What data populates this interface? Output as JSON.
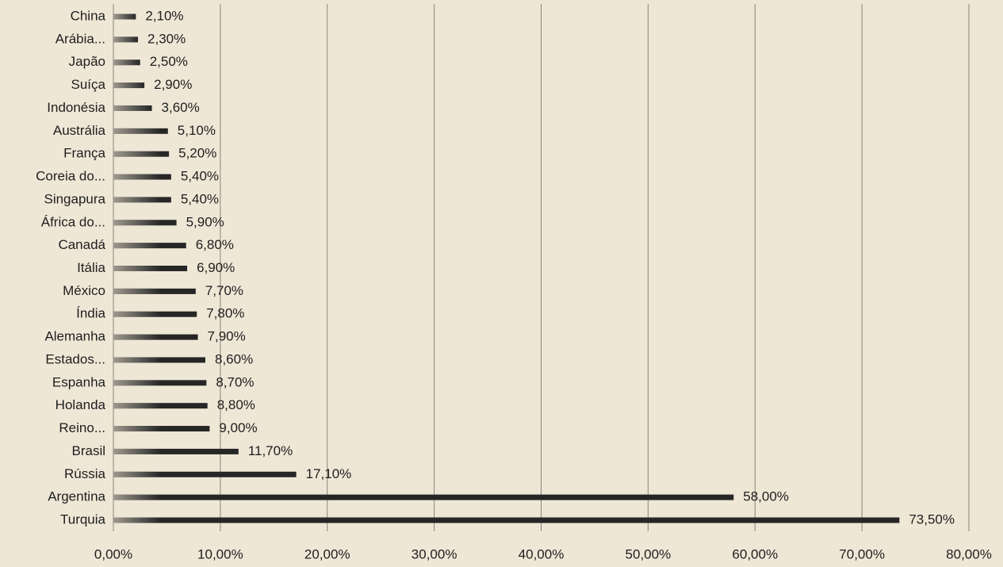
{
  "chart_data": {
    "type": "bar",
    "orientation": "horizontal",
    "color": "#262626",
    "grid": true,
    "categories": [
      "China",
      "Arábia...",
      "Japão",
      "Suíça",
      "Indonésia",
      "Austrália",
      "França",
      "Coreia do...",
      "Singapura",
      "África do...",
      "Canadá",
      "Itália",
      "México",
      "Índia",
      "Alemanha",
      "Estados...",
      "Espanha",
      "Holanda",
      "Reino...",
      "Brasil",
      "Rússia",
      "Argentina",
      "Turquia"
    ],
    "values": [
      2.1,
      2.3,
      2.5,
      2.9,
      3.6,
      5.1,
      5.2,
      5.4,
      5.4,
      5.9,
      6.8,
      6.9,
      7.7,
      7.8,
      7.9,
      8.6,
      8.7,
      8.8,
      9.0,
      11.7,
      17.1,
      58.0,
      73.5
    ],
    "value_labels": [
      "2,10%",
      "2,30%",
      "2,50%",
      "2,90%",
      "3,60%",
      "5,10%",
      "5,20%",
      "5,40%",
      "5,40%",
      "5,90%",
      "6,80%",
      "6,90%",
      "7,70%",
      "7,80%",
      "7,90%",
      "8,60%",
      "8,70%",
      "8,80%",
      "9,00%",
      "11,70%",
      "17,10%",
      "58,00%",
      "73,50%"
    ],
    "xlim": [
      0,
      80
    ],
    "xticks": [
      {
        "value": 0,
        "label": "0,00%"
      },
      {
        "value": 10,
        "label": "10,00%"
      },
      {
        "value": 20,
        "label": "20,00%"
      },
      {
        "value": 30,
        "label": "30,00%"
      },
      {
        "value": 40,
        "label": "40,00%"
      },
      {
        "value": 50,
        "label": "50,00%"
      },
      {
        "value": 60,
        "label": "60,00%"
      },
      {
        "value": 70,
        "label": "70,00%"
      },
      {
        "value": 80,
        "label": "80,00%"
      }
    ]
  }
}
